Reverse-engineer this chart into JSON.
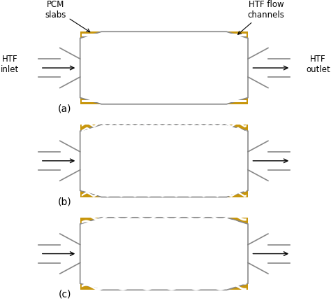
{
  "background_color": "#ffffff",
  "gold_color": "#C8960C",
  "gold_dark": "#A07800",
  "outline_color": "#888888",
  "text_color": "#000000",
  "panel_a_label": "(a)",
  "panel_b_label": "(b)",
  "panel_c_label": "(c)",
  "annotations": {
    "pcm_slabs": "PCM\nslabs",
    "htf_flow": "HTF flow\nchannels",
    "htf_inlet": "HTF\ninlet",
    "htf_outlet": "HTF\noutlet"
  },
  "n_straight_lines": 11,
  "n_zigzag_lines": 13,
  "n_sine_lines": 12
}
